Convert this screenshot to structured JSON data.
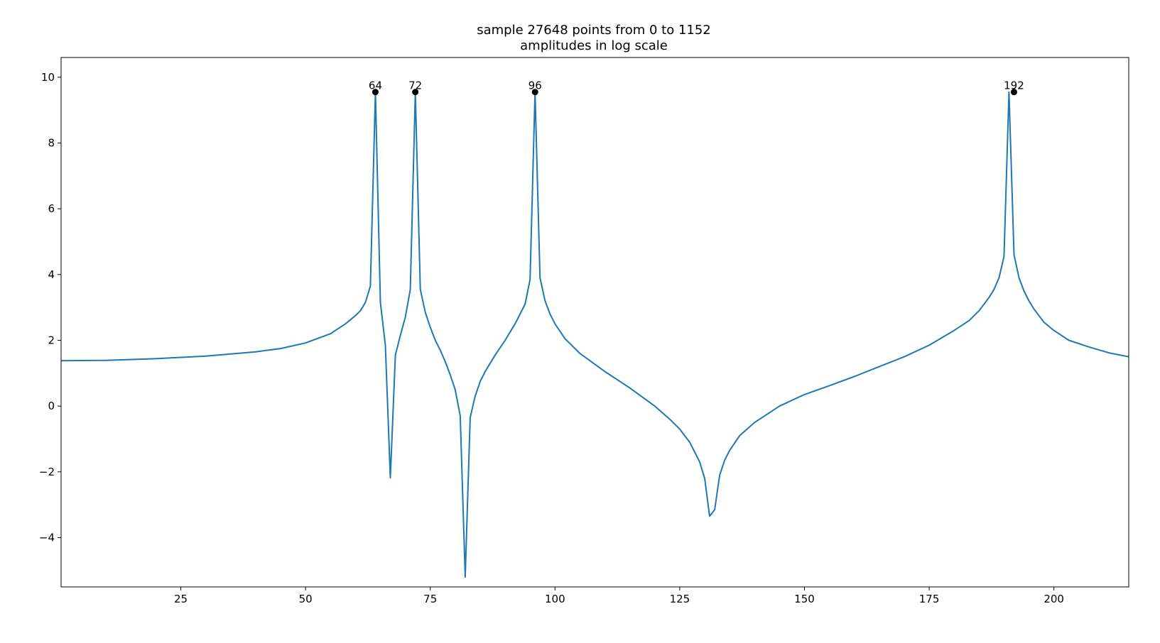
{
  "chart_data": {
    "type": "line",
    "title": "sample 27648 points from 0 to 1152",
    "subtitle": "amplitudes in log scale",
    "xlabel": "",
    "ylabel": "",
    "xlim": [
      1,
      215
    ],
    "ylim": [
      -5.5,
      10.6
    ],
    "x_ticks": [
      25,
      50,
      75,
      100,
      125,
      150,
      175,
      200
    ],
    "x_tick_labels": [
      "25",
      "50",
      "75",
      "100",
      "125",
      "150",
      "175",
      "200"
    ],
    "y_ticks": [
      -4,
      -2,
      0,
      2,
      4,
      6,
      8,
      10
    ],
    "y_tick_labels": [
      "−4",
      "−2",
      "0",
      "2",
      "4",
      "6",
      "8",
      "10"
    ],
    "grid": false,
    "legend": "none",
    "series": [
      {
        "color": "#1f77b4",
        "x": [
          1,
          10,
          20,
          30,
          40,
          45,
          50,
          55,
          58,
          60,
          61,
          62,
          63,
          64,
          65,
          66,
          67,
          68,
          69,
          70,
          71,
          72,
          73,
          74,
          75,
          76,
          77,
          78,
          79,
          80,
          81,
          82,
          83,
          84,
          85,
          86,
          88,
          90,
          92,
          94,
          95,
          96,
          97,
          98,
          99,
          100,
          102,
          105,
          110,
          115,
          120,
          123,
          125,
          127,
          128,
          129,
          130,
          131,
          132,
          133,
          134,
          135,
          137,
          140,
          145,
          150,
          155,
          160,
          165,
          170,
          175,
          180,
          183,
          185,
          187,
          188,
          189,
          190,
          191,
          192,
          193,
          194,
          195,
          196,
          197,
          198,
          200,
          203,
          207,
          211,
          215
        ],
        "y": [
          1.38,
          1.39,
          1.44,
          1.52,
          1.65,
          1.75,
          1.92,
          2.2,
          2.5,
          2.75,
          2.9,
          3.15,
          3.65,
          9.55,
          3.15,
          1.85,
          -2.18,
          1.55,
          2.15,
          2.7,
          3.55,
          9.55,
          3.55,
          2.85,
          2.4,
          2.0,
          1.7,
          1.35,
          0.95,
          0.5,
          -0.3,
          -5.2,
          -0.35,
          0.3,
          0.75,
          1.05,
          1.55,
          2.0,
          2.5,
          3.1,
          3.85,
          9.55,
          3.9,
          3.2,
          2.8,
          2.5,
          2.05,
          1.6,
          1.05,
          0.55,
          0.0,
          -0.4,
          -0.7,
          -1.1,
          -1.4,
          -1.7,
          -2.2,
          -3.35,
          -3.15,
          -2.1,
          -1.65,
          -1.35,
          -0.9,
          -0.5,
          0.0,
          0.35,
          0.62,
          0.9,
          1.2,
          1.5,
          1.85,
          2.3,
          2.6,
          2.9,
          3.3,
          3.55,
          3.9,
          4.55,
          9.55,
          4.6,
          3.9,
          3.5,
          3.2,
          2.95,
          2.75,
          2.55,
          2.3,
          2.0,
          1.8,
          1.62,
          1.5
        ]
      }
    ],
    "peaks": [
      {
        "x": 64,
        "y": 9.55,
        "label": "64"
      },
      {
        "x": 72,
        "y": 9.55,
        "label": "72"
      },
      {
        "x": 96,
        "y": 9.55,
        "label": "96"
      },
      {
        "x": 192,
        "y": 9.55,
        "label": "192"
      }
    ]
  }
}
